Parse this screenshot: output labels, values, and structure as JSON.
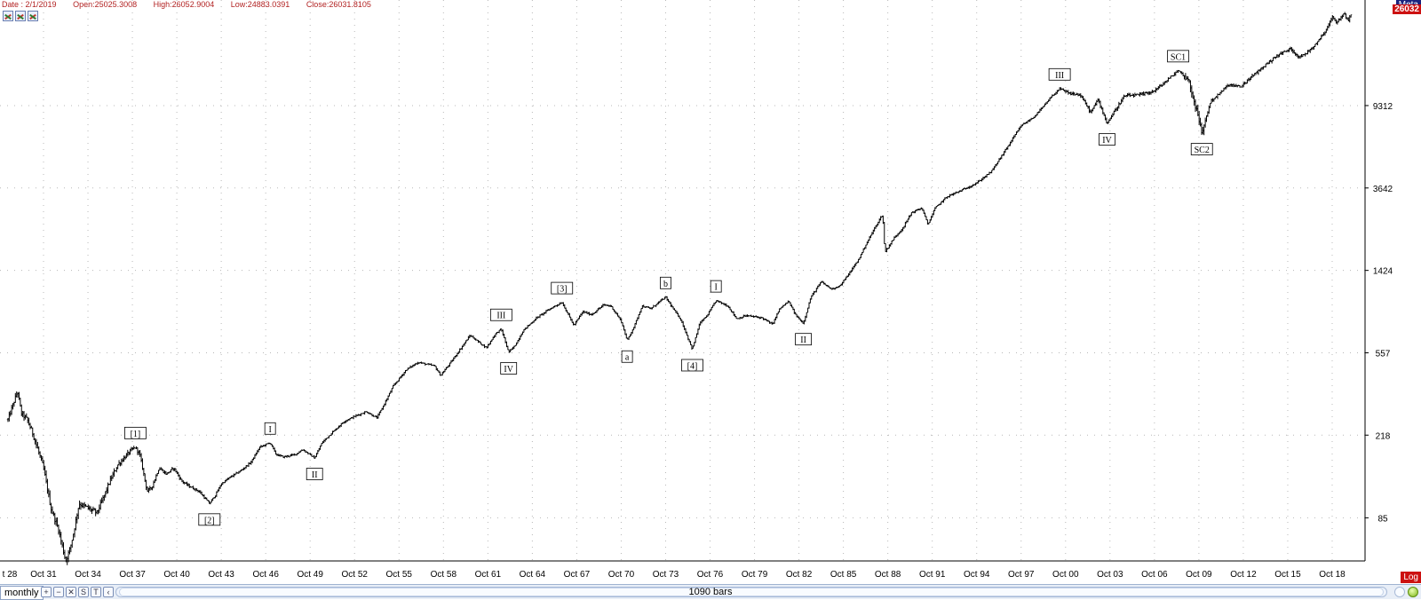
{
  "info": {
    "date": "Date : 2/1/2019",
    "open": "Open:25025.3008",
    "high": "High:26052.9004",
    "low": "Low:24883.0391",
    "close": "Close:26031.8105"
  },
  "badges": {
    "top": "Meta",
    "price": "26032",
    "log": "Log"
  },
  "toolbar": {
    "period": "monthly",
    "bars": "1090 bars",
    "s_label": "S",
    "t_label": "T"
  },
  "colors": {
    "bars": "#000000",
    "axis_text": "#000000",
    "price_badge": "#cc1111",
    "top_badge": "#1a237e",
    "grid_dot": "#b8b8b8"
  },
  "icons": [
    "chart-tool-icon",
    "chart-tool-icon",
    "chart-tool-icon",
    "zoom-in-icon",
    "zoom-out-icon",
    "chart-tool-icon"
  ],
  "chart_data": {
    "type": "ohlc",
    "title": "",
    "xlabel": "",
    "ylabel": "",
    "y_scale": "log",
    "ylim": [
      52,
      31000
    ],
    "xlim": [
      1928.6,
      2019.6
    ],
    "grid": true,
    "y_ticks": [
      85,
      218,
      557,
      1424,
      3642,
      9312
    ],
    "y_tick_labels": [
      "85",
      "218",
      "557",
      "1424",
      "3642",
      "9312"
    ],
    "x_ticks": [
      1928,
      1931,
      1934,
      1937,
      1940,
      1943,
      1946,
      1949,
      1952,
      1955,
      1958,
      1961,
      1964,
      1967,
      1970,
      1973,
      1976,
      1979,
      1982,
      1985,
      1988,
      1991,
      1994,
      1997,
      2000,
      2003,
      2006,
      2009,
      2012,
      2015,
      2018
    ],
    "x_tick_labels": [
      "t 28",
      "Oct 31",
      "Oct 34",
      "Oct 37",
      "Oct 40",
      "Oct 43",
      "Oct 46",
      "Oct 49",
      "Oct 52",
      "Oct 55",
      "Oct 58",
      "Oct 61",
      "Oct 64",
      "Oct 67",
      "Oct 70",
      "Oct 73",
      "Oct 76",
      "Oct 79",
      "Oct 82",
      "Oct 85",
      "Oct 88",
      "Oct 91",
      "Oct 94",
      "Oct 97",
      "Oct 00",
      "Oct 03",
      "Oct 06",
      "Oct 09",
      "Oct 12",
      "Oct 15",
      "Oct 18"
    ],
    "path": [
      [
        1928.6,
        260
      ],
      [
        1929.25,
        360
      ],
      [
        1929.5,
        280
      ],
      [
        1929.9,
        260
      ],
      [
        1930.3,
        220
      ],
      [
        1931.0,
        150
      ],
      [
        1931.5,
        95
      ],
      [
        1932.0,
        75
      ],
      [
        1932.5,
        52
      ],
      [
        1932.8,
        60
      ],
      [
        1933.0,
        70
      ],
      [
        1933.4,
        100
      ],
      [
        1934.0,
        95
      ],
      [
        1934.6,
        90
      ],
      [
        1935.0,
        105
      ],
      [
        1935.5,
        130
      ],
      [
        1936.0,
        155
      ],
      [
        1936.8,
        180
      ],
      [
        1937.2,
        190
      ],
      [
        1937.5,
        175
      ],
      [
        1938.0,
        115
      ],
      [
        1938.3,
        120
      ],
      [
        1938.8,
        150
      ],
      [
        1939.3,
        140
      ],
      [
        1939.8,
        150
      ],
      [
        1940.3,
        130
      ],
      [
        1940.6,
        125
      ],
      [
        1941.0,
        120
      ],
      [
        1941.5,
        115
      ],
      [
        1942.2,
        100
      ],
      [
        1942.6,
        110
      ],
      [
        1943.0,
        125
      ],
      [
        1943.6,
        135
      ],
      [
        1944.3,
        145
      ],
      [
        1945.0,
        160
      ],
      [
        1945.6,
        190
      ],
      [
        1946.3,
        200
      ],
      [
        1946.7,
        175
      ],
      [
        1947.2,
        170
      ],
      [
        1948.0,
        175
      ],
      [
        1948.5,
        185
      ],
      [
        1949.3,
        168
      ],
      [
        1949.8,
        200
      ],
      [
        1950.5,
        225
      ],
      [
        1951.3,
        255
      ],
      [
        1952.0,
        270
      ],
      [
        1952.8,
        285
      ],
      [
        1953.5,
        265
      ],
      [
        1954.0,
        310
      ],
      [
        1954.6,
        380
      ],
      [
        1955.5,
        460
      ],
      [
        1956.3,
        500
      ],
      [
        1956.8,
        490
      ],
      [
        1957.4,
        480
      ],
      [
        1957.8,
        430
      ],
      [
        1958.5,
        500
      ],
      [
        1959.2,
        590
      ],
      [
        1959.8,
        680
      ],
      [
        1960.5,
        620
      ],
      [
        1960.9,
        590
      ],
      [
        1961.5,
        690
      ],
      [
        1961.9,
        730
      ],
      [
        1962.4,
        560
      ],
      [
        1962.8,
        600
      ],
      [
        1963.4,
        720
      ],
      [
        1964.3,
        830
      ],
      [
        1965.2,
        920
      ],
      [
        1966.0,
        990
      ],
      [
        1966.8,
        760
      ],
      [
        1967.4,
        890
      ],
      [
        1968.0,
        860
      ],
      [
        1968.8,
        960
      ],
      [
        1969.3,
        950
      ],
      [
        1970.0,
        800
      ],
      [
        1970.4,
        640
      ],
      [
        1970.9,
        760
      ],
      [
        1971.4,
        950
      ],
      [
        1972.0,
        920
      ],
      [
        1972.6,
        1000
      ],
      [
        1973.0,
        1050
      ],
      [
        1973.5,
        920
      ],
      [
        1974.0,
        820
      ],
      [
        1974.8,
        580
      ],
      [
        1975.3,
        780
      ],
      [
        1975.8,
        850
      ],
      [
        1976.4,
        1010
      ],
      [
        1977.2,
        950
      ],
      [
        1977.8,
        820
      ],
      [
        1978.4,
        850
      ],
      [
        1979.0,
        840
      ],
      [
        1979.5,
        830
      ],
      [
        1980.2,
        770
      ],
      [
        1980.7,
        920
      ],
      [
        1981.3,
        1000
      ],
      [
        1981.8,
        850
      ],
      [
        1982.3,
        780
      ],
      [
        1982.8,
        1050
      ],
      [
        1983.5,
        1250
      ],
      [
        1984.2,
        1150
      ],
      [
        1984.8,
        1200
      ],
      [
        1985.4,
        1380
      ],
      [
        1986.0,
        1600
      ],
      [
        1986.5,
        1900
      ],
      [
        1987.1,
        2300
      ],
      [
        1987.65,
        2700
      ],
      [
        1987.8,
        1750
      ],
      [
        1988.4,
        2050
      ],
      [
        1989.0,
        2300
      ],
      [
        1989.6,
        2750
      ],
      [
        1990.3,
        2900
      ],
      [
        1990.7,
        2400
      ],
      [
        1991.2,
        2900
      ],
      [
        1992.0,
        3300
      ],
      [
        1993.0,
        3550
      ],
      [
        1994.0,
        3850
      ],
      [
        1995.0,
        4400
      ],
      [
        1996.0,
        5700
      ],
      [
        1997.0,
        7400
      ],
      [
        1997.8,
        8100
      ],
      [
        1998.5,
        9200
      ],
      [
        1999.0,
        10200
      ],
      [
        1999.6,
        11300
      ],
      [
        2000.2,
        10700
      ],
      [
        2001.0,
        10500
      ],
      [
        2001.7,
        8600
      ],
      [
        2002.2,
        10000
      ],
      [
        2002.8,
        7600
      ],
      [
        2003.5,
        9200
      ],
      [
        2004.0,
        10400
      ],
      [
        2005.0,
        10500
      ],
      [
        2006.0,
        11000
      ],
      [
        2006.8,
        12300
      ],
      [
        2007.6,
        13900
      ],
      [
        2008.3,
        12500
      ],
      [
        2008.9,
        8500
      ],
      [
        2009.2,
        6800
      ],
      [
        2009.8,
        9800
      ],
      [
        2010.3,
        10500
      ],
      [
        2011.0,
        11800
      ],
      [
        2011.8,
        11500
      ],
      [
        2012.5,
        12800
      ],
      [
        2013.5,
        14800
      ],
      [
        2014.3,
        16500
      ],
      [
        2015.2,
        17800
      ],
      [
        2015.7,
        16300
      ],
      [
        2016.1,
        16500
      ],
      [
        2016.8,
        18500
      ],
      [
        2017.5,
        21500
      ],
      [
        2018.0,
        25500
      ],
      [
        2018.3,
        24000
      ],
      [
        2018.8,
        26500
      ],
      [
        2019.1,
        24500
      ],
      [
        2019.25,
        26032
      ]
    ],
    "annotations": [
      {
        "text": "[1]",
        "x": 1937.2,
        "y": 190,
        "pos": "above"
      },
      {
        "text": "[2]",
        "x": 1942.2,
        "y": 100,
        "pos": "below"
      },
      {
        "text": "I",
        "x": 1946.3,
        "y": 200,
        "pos": "above"
      },
      {
        "text": "II",
        "x": 1949.3,
        "y": 168,
        "pos": "below"
      },
      {
        "text": "III",
        "x": 1961.9,
        "y": 730,
        "pos": "above"
      },
      {
        "text": "IV",
        "x": 1962.4,
        "y": 560,
        "pos": "below"
      },
      {
        "text": "[3]",
        "x": 1966.0,
        "y": 990,
        "pos": "above"
      },
      {
        "text": "a",
        "x": 1970.4,
        "y": 640,
        "pos": "below"
      },
      {
        "text": "b",
        "x": 1973.0,
        "y": 1050,
        "pos": "above"
      },
      {
        "text": "[4]",
        "x": 1974.8,
        "y": 580,
        "pos": "below"
      },
      {
        "text": "I",
        "x": 1976.4,
        "y": 1010,
        "pos": "above"
      },
      {
        "text": "II",
        "x": 1982.3,
        "y": 780,
        "pos": "below"
      },
      {
        "text": "III",
        "x": 1999.6,
        "y": 11300,
        "pos": "above"
      },
      {
        "text": "IV",
        "x": 2002.8,
        "y": 7600,
        "pos": "below"
      },
      {
        "text": "SC1",
        "x": 2007.6,
        "y": 13900,
        "pos": "above"
      },
      {
        "text": "SC2",
        "x": 2009.2,
        "y": 6800,
        "pos": "below"
      }
    ]
  }
}
